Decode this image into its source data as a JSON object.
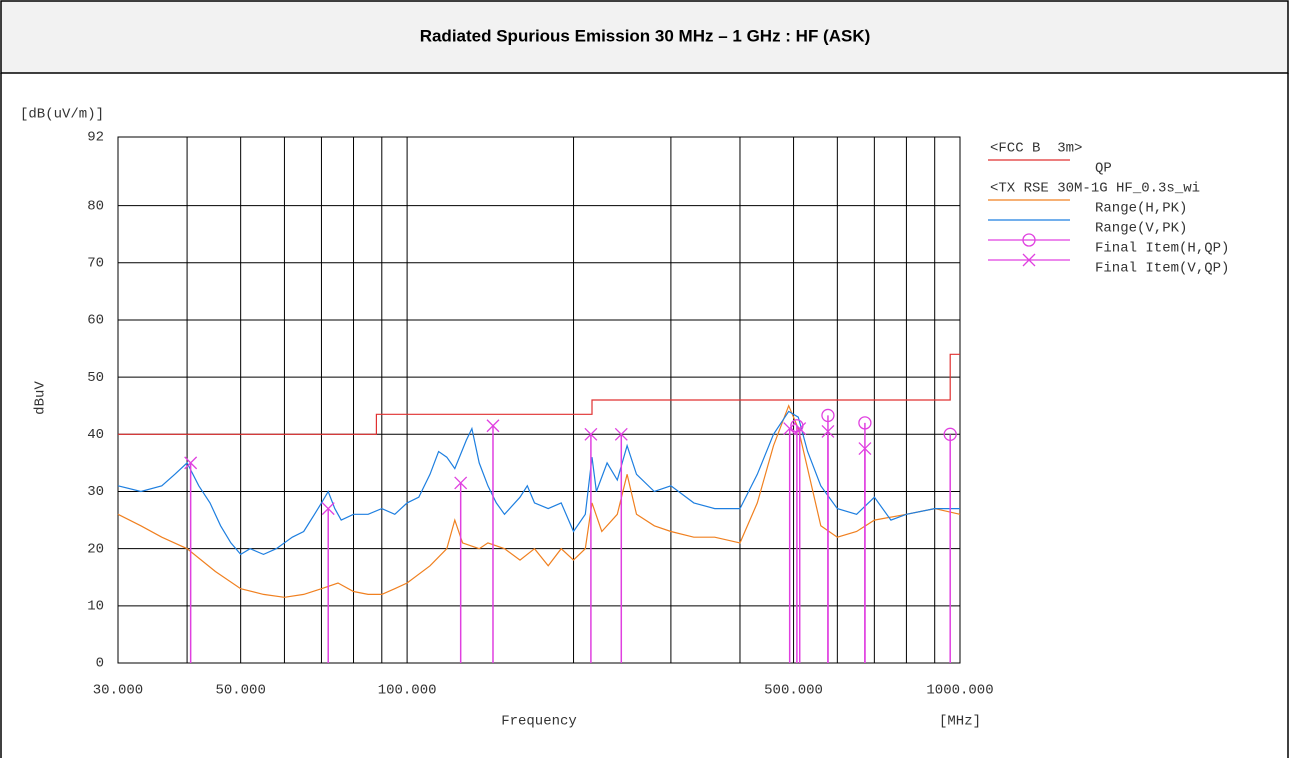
{
  "chart_data": {
    "type": "line",
    "title": "Radiated Spurious Emission 30 MHz – 1 GHz : HF (ASK)",
    "y_unit": "[dB(uV/m)]",
    "ylabel": "dBuV",
    "xlabel": "Frequency",
    "x_unit": "[MHz]",
    "xscale": "log",
    "xlim": [
      30,
      1000
    ],
    "xticks": [
      {
        "value": 30,
        "label": "30.000"
      },
      {
        "value": 50,
        "label": "50.000"
      },
      {
        "value": 100,
        "label": "100.000"
      },
      {
        "value": 500,
        "label": "500.000"
      },
      {
        "value": 1000,
        "label": "1000.000"
      }
    ],
    "xminor": [
      40,
      60,
      70,
      80,
      90,
      200,
      300,
      400,
      600,
      700,
      800,
      900
    ],
    "ylim": [
      0,
      92
    ],
    "yticks": [
      0,
      10,
      20,
      30,
      40,
      50,
      60,
      70,
      80,
      92
    ],
    "grid": true,
    "legend_titles": [
      "<FCC B  3m>",
      "<TX RSE 30M-1G HF_0.3s_wi"
    ],
    "series": [
      {
        "name": "QP",
        "group": 0,
        "color": "#e03030",
        "x": [
          30,
          88,
          88,
          216,
          216,
          960,
          960,
          1000
        ],
        "values": [
          40,
          40,
          43.5,
          43.5,
          46,
          46,
          54,
          54
        ]
      },
      {
        "name": "Range(H,PK)",
        "group": 1,
        "color": "#f08020",
        "x": [
          30,
          33,
          36,
          40,
          45,
          50,
          55,
          60,
          65,
          70,
          75,
          80,
          85,
          90,
          95,
          100,
          110,
          118,
          122,
          126,
          135,
          140,
          150,
          160,
          170,
          180,
          190,
          200,
          210,
          216,
          225,
          240,
          250,
          260,
          280,
          300,
          330,
          360,
          400,
          430,
          460,
          490,
          510,
          530,
          560,
          600,
          650,
          700,
          800,
          900,
          1000
        ],
        "values": [
          26,
          24,
          22,
          20,
          16,
          13,
          12,
          11.5,
          12,
          13,
          14,
          12.5,
          12,
          12,
          13,
          14,
          17,
          20,
          25,
          21,
          20,
          21,
          20,
          18,
          20,
          17,
          20,
          18,
          20,
          28,
          23,
          26,
          33,
          26,
          24,
          23,
          22,
          22,
          21,
          28,
          38,
          45,
          41,
          34,
          24,
          22,
          23,
          25,
          26,
          27,
          26
        ]
      },
      {
        "name": "Range(V,PK)",
        "group": 1,
        "color": "#1e7fe0",
        "x": [
          30,
          33,
          36,
          38,
          40,
          42,
          44,
          46,
          48,
          50,
          52,
          55,
          58,
          62,
          65,
          68,
          70,
          72,
          74,
          76,
          80,
          85,
          90,
          95,
          100,
          105,
          110,
          114,
          118,
          122,
          128,
          131,
          135,
          140,
          145,
          150,
          160,
          165,
          170,
          180,
          190,
          200,
          210,
          216,
          220,
          230,
          240,
          250,
          260,
          280,
          300,
          330,
          360,
          400,
          430,
          460,
          490,
          510,
          530,
          560,
          600,
          650,
          700,
          750,
          800,
          900,
          1000
        ],
        "values": [
          31,
          30,
          31,
          33,
          35,
          31,
          28,
          24,
          21,
          19,
          20,
          19,
          20,
          22,
          23,
          26,
          28,
          30,
          27,
          25,
          26,
          26,
          27,
          26,
          28,
          29,
          33,
          37,
          36,
          34,
          39,
          41,
          35,
          31,
          28,
          26,
          29,
          31,
          28,
          27,
          28,
          23,
          26,
          36,
          30,
          35,
          32,
          38,
          33,
          30,
          31,
          28,
          27,
          27,
          33,
          40,
          44,
          43,
          37,
          31,
          27,
          26,
          29,
          25,
          26,
          27,
          27
        ]
      },
      {
        "name": "Final Item(H,QP)",
        "group": 1,
        "color": "#e040e0",
        "marker": "circle",
        "x": [
          507,
          577,
          673,
          960
        ],
        "values": [
          41.5,
          43.3,
          42,
          40
        ]
      },
      {
        "name": "Final Item(V,QP)",
        "group": 1,
        "color": "#e040e0",
        "marker": "x",
        "x": [
          40.6,
          72,
          125,
          143,
          215,
          244,
          492,
          513,
          577,
          673
        ],
        "values": [
          35,
          27,
          31.5,
          41.5,
          40,
          40,
          41,
          41,
          40.5,
          37.5
        ]
      }
    ]
  }
}
